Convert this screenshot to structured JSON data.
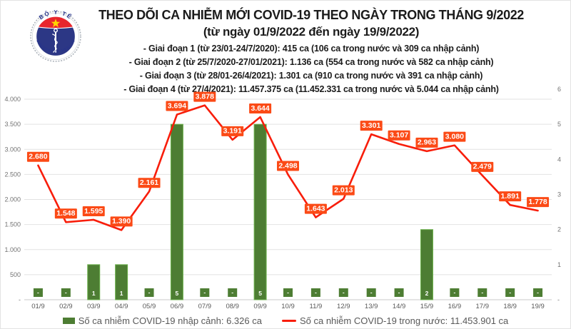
{
  "logo": {
    "top_text": "BỘ Y TẾ",
    "bottom_text": "MINISTRY OF HEALTH"
  },
  "header": {
    "title": "THEO DÕI CA NHIỄM MỚI COVID-19 THEO NGÀY TRONG THÁNG 9/2022",
    "subtitle": "(từ ngày 01/9/2022 đến ngày 19/9/2022)",
    "phase_lines": [
      "- Giai đoạn 1 (từ 23/01-24/7/2020): 415 ca (106 ca trong nước và 309 ca nhập cảnh)",
      "- Giai đoạn 2 (từ 25/7/2020-27/01/2021): 1.136 ca (554 ca trong nước và 582 ca nhập cảnh)",
      "- Giai đoạn 3 (từ 28/01-26/4/2021): 1.301 ca (910 ca trong nước và 391 ca nhập cảnh)",
      "- Giai đoạn 4 (từ 27/4/2021): 11.457.375 ca (11.452.331 ca trong nước và 5.044 ca nhập cảnh)"
    ]
  },
  "chart_data": {
    "type": "combo",
    "title": "THEO DÕI CA NHIỄM MỚI COVID-19 THEO NGÀY TRONG THÁNG 9/2022",
    "categories": [
      "01/9",
      "02/9",
      "03/9",
      "04/9",
      "05/9",
      "06/9",
      "07/9",
      "08/9",
      "09/9",
      "10/9",
      "11/9",
      "12/9",
      "13/9",
      "14/9",
      "15/9",
      "16/9",
      "17/9",
      "18/9",
      "19/9"
    ],
    "series": [
      {
        "name": "Số ca nhiễm COVID-19 nhập cảnh",
        "type": "bar",
        "axis": "right",
        "values": [
          0,
          0,
          1,
          1,
          0,
          5,
          0,
          0,
          5,
          0,
          0,
          0,
          0,
          0,
          2,
          0,
          0,
          0,
          0
        ],
        "labels": [
          "-",
          "-",
          "1",
          "1",
          "-",
          "5",
          "-",
          "-",
          "5",
          "-",
          "-",
          "-",
          "-",
          "-",
          "2",
          "-",
          "-",
          "-",
          "-"
        ]
      },
      {
        "name": "Số ca nhiễm COVID-19 trong nước",
        "type": "line",
        "axis": "left",
        "values": [
          2680,
          1548,
          1595,
          1390,
          2161,
          3694,
          3878,
          3191,
          3644,
          2498,
          1643,
          2013,
          3301,
          3107,
          2963,
          3080,
          2479,
          1891,
          1778
        ],
        "labels": [
          "2.680",
          "1.548",
          "1.595",
          "1.390",
          "2.161",
          "3.694",
          "3.878",
          "3.191",
          "3.644",
          "2.498",
          "1.643",
          "2.013",
          "3.301",
          "3.107",
          "2.963",
          "3.080",
          "2.479",
          "1.891",
          "1.778"
        ]
      }
    ],
    "left_axis": {
      "min": 0,
      "max": 4200,
      "tick_step": 500,
      "tick_labels": [
        "-",
        "500",
        "1.000",
        "1.500",
        "2.000",
        "2.500",
        "3.000",
        "3.500",
        "4.000"
      ]
    },
    "right_axis": {
      "min": 0,
      "max": 6,
      "tick_step": 1,
      "tick_labels": [
        "-",
        "1",
        "2",
        "3",
        "4",
        "5",
        "6"
      ]
    },
    "grid": true,
    "legend_position": "bottom"
  },
  "legend": {
    "bar_item": "Số ca nhiễm COVID-19 nhập cảnh: 6.326 ca",
    "line_item": "Số ca nhiễm COVID-19 trong nước: 11.453.901 ca"
  },
  "colors": {
    "bar_fill": "#4d7d33",
    "bar_border": "#6cb14c",
    "line": "#f81d0a",
    "point_label_bg": "#fb4a16",
    "point_label_text": "#ffffff",
    "bar_label_text": "#ffffff",
    "grid": "#e2e2e2",
    "axis_line": "#c9c9c9",
    "axis_text": "#737373",
    "date_text": "#595959",
    "legend_text": "#595959",
    "title_text": "#1b1b1b",
    "logo_blue": "#2c3785",
    "logo_red": "#e8262d",
    "logo_star": "#ffd500",
    "logo_ring": "#a9b0b8"
  }
}
